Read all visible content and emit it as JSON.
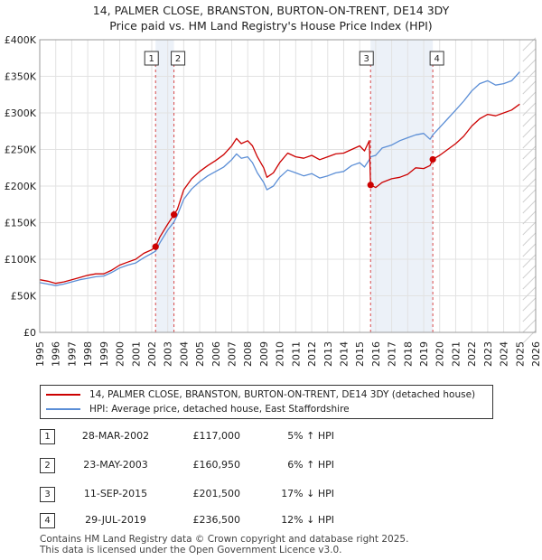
{
  "header": {
    "title_line1": "14, PALMER CLOSE, BRANSTON, BURTON-ON-TRENT, DE14 3DY",
    "title_line2": "Price paid vs. HM Land Registry's House Price Index (HPI)"
  },
  "colors": {
    "property": "#cc0000",
    "hpi": "#5b8ed6",
    "marker_line": "#cc0000",
    "band": "#dde6f3"
  },
  "chart_data": {
    "type": "line",
    "title": "Price paid vs. HM Land Registry's House Price Index (HPI)",
    "xlabel": "",
    "ylabel": "",
    "xlim": [
      1995,
      2026
    ],
    "ylim": [
      0,
      400000
    ],
    "y_ticks": [
      0,
      50000,
      100000,
      150000,
      200000,
      250000,
      300000,
      350000,
      400000
    ],
    "y_tick_labels": [
      "£0",
      "£50K",
      "£100K",
      "£150K",
      "£200K",
      "£250K",
      "£300K",
      "£350K",
      "£400K"
    ],
    "x_ticks": [
      1995,
      1996,
      1997,
      1998,
      1999,
      2000,
      2001,
      2002,
      2003,
      2004,
      2005,
      2006,
      2007,
      2008,
      2009,
      2010,
      2011,
      2012,
      2013,
      2014,
      2015,
      2016,
      2017,
      2018,
      2019,
      2020,
      2021,
      2022,
      2023,
      2024,
      2025,
      2026
    ],
    "x_tick_labels": [
      "1995",
      "1996",
      "1997",
      "1998",
      "1999",
      "2000",
      "2001",
      "2002",
      "2003",
      "2004",
      "2005",
      "2006",
      "2007",
      "2008",
      "2009",
      "2010",
      "2011",
      "2012",
      "2013",
      "2014",
      "2015",
      "2016",
      "2017",
      "2018",
      "2019",
      "2020",
      "2021",
      "2022",
      "2023",
      "2024",
      "2025",
      "2026"
    ],
    "grid": true,
    "hatch_after": 2025.2,
    "series": [
      {
        "name": "14, PALMER CLOSE, BRANSTON, BURTON-ON-TRENT, DE14 3DY (detached house)",
        "color": "#cc0000",
        "points": [
          [
            1995.0,
            72000
          ],
          [
            1995.5,
            70000
          ],
          [
            1996.0,
            67000
          ],
          [
            1996.5,
            69000
          ],
          [
            1997.0,
            72000
          ],
          [
            1997.5,
            75000
          ],
          [
            1998.0,
            78000
          ],
          [
            1998.5,
            80000
          ],
          [
            1999.0,
            80000
          ],
          [
            1999.5,
            85000
          ],
          [
            2000.0,
            92000
          ],
          [
            2000.5,
            96000
          ],
          [
            2001.0,
            100000
          ],
          [
            2001.5,
            108000
          ],
          [
            2002.0,
            113000
          ],
          [
            2002.24,
            117000
          ],
          [
            2002.5,
            130000
          ],
          [
            2003.0,
            148000
          ],
          [
            2003.39,
            160950
          ],
          [
            2003.6,
            168000
          ],
          [
            2004.0,
            195000
          ],
          [
            2004.5,
            210000
          ],
          [
            2005.0,
            220000
          ],
          [
            2005.5,
            228000
          ],
          [
            2006.0,
            235000
          ],
          [
            2006.5,
            243000
          ],
          [
            2007.0,
            255000
          ],
          [
            2007.3,
            265000
          ],
          [
            2007.6,
            258000
          ],
          [
            2008.0,
            262000
          ],
          [
            2008.3,
            255000
          ],
          [
            2008.6,
            240000
          ],
          [
            2009.0,
            225000
          ],
          [
            2009.2,
            212000
          ],
          [
            2009.6,
            218000
          ],
          [
            2010.0,
            232000
          ],
          [
            2010.5,
            245000
          ],
          [
            2011.0,
            240000
          ],
          [
            2011.5,
            238000
          ],
          [
            2012.0,
            242000
          ],
          [
            2012.5,
            236000
          ],
          [
            2013.0,
            240000
          ],
          [
            2013.5,
            244000
          ],
          [
            2014.0,
            245000
          ],
          [
            2014.5,
            250000
          ],
          [
            2015.0,
            255000
          ],
          [
            2015.3,
            248000
          ],
          [
            2015.6,
            262000
          ],
          [
            2015.68,
            201500
          ],
          [
            2016.0,
            198000
          ],
          [
            2016.4,
            205000
          ],
          [
            2017.0,
            210000
          ],
          [
            2017.5,
            212000
          ],
          [
            2018.0,
            216000
          ],
          [
            2018.5,
            225000
          ],
          [
            2019.0,
            224000
          ],
          [
            2019.4,
            228000
          ],
          [
            2019.57,
            236500
          ],
          [
            2020.0,
            242000
          ],
          [
            2020.5,
            250000
          ],
          [
            2021.0,
            258000
          ],
          [
            2021.5,
            268000
          ],
          [
            2022.0,
            282000
          ],
          [
            2022.5,
            292000
          ],
          [
            2023.0,
            298000
          ],
          [
            2023.5,
            296000
          ],
          [
            2024.0,
            300000
          ],
          [
            2024.5,
            304000
          ],
          [
            2025.0,
            312000
          ]
        ]
      },
      {
        "name": "HPI: Average price, detached house, East Staffordshire",
        "color": "#5b8ed6",
        "points": [
          [
            1995.0,
            68000
          ],
          [
            1995.5,
            66000
          ],
          [
            1996.0,
            64000
          ],
          [
            1996.5,
            66000
          ],
          [
            1997.0,
            69000
          ],
          [
            1997.5,
            72000
          ],
          [
            1998.0,
            74000
          ],
          [
            1998.5,
            76000
          ],
          [
            1999.0,
            77000
          ],
          [
            1999.5,
            82000
          ],
          [
            2000.0,
            88000
          ],
          [
            2000.5,
            92000
          ],
          [
            2001.0,
            95000
          ],
          [
            2001.5,
            102000
          ],
          [
            2002.0,
            108000
          ],
          [
            2002.24,
            111000
          ],
          [
            2002.5,
            122000
          ],
          [
            2003.0,
            140000
          ],
          [
            2003.39,
            151000
          ],
          [
            2003.6,
            160000
          ],
          [
            2004.0,
            182000
          ],
          [
            2004.5,
            196000
          ],
          [
            2005.0,
            206000
          ],
          [
            2005.5,
            214000
          ],
          [
            2006.0,
            220000
          ],
          [
            2006.5,
            226000
          ],
          [
            2007.0,
            236000
          ],
          [
            2007.3,
            244000
          ],
          [
            2007.6,
            238000
          ],
          [
            2008.0,
            240000
          ],
          [
            2008.3,
            232000
          ],
          [
            2008.6,
            218000
          ],
          [
            2009.0,
            205000
          ],
          [
            2009.2,
            195000
          ],
          [
            2009.6,
            200000
          ],
          [
            2010.0,
            212000
          ],
          [
            2010.5,
            222000
          ],
          [
            2011.0,
            218000
          ],
          [
            2011.5,
            214000
          ],
          [
            2012.0,
            217000
          ],
          [
            2012.5,
            211000
          ],
          [
            2013.0,
            214000
          ],
          [
            2013.5,
            218000
          ],
          [
            2014.0,
            220000
          ],
          [
            2014.5,
            228000
          ],
          [
            2015.0,
            232000
          ],
          [
            2015.3,
            226000
          ],
          [
            2015.6,
            236000
          ],
          [
            2015.68,
            240000
          ],
          [
            2016.0,
            242000
          ],
          [
            2016.4,
            252000
          ],
          [
            2017.0,
            256000
          ],
          [
            2017.5,
            262000
          ],
          [
            2018.0,
            266000
          ],
          [
            2018.5,
            270000
          ],
          [
            2019.0,
            272000
          ],
          [
            2019.4,
            264000
          ],
          [
            2019.57,
            270000
          ],
          [
            2020.0,
            280000
          ],
          [
            2020.5,
            292000
          ],
          [
            2021.0,
            304000
          ],
          [
            2021.5,
            316000
          ],
          [
            2022.0,
            330000
          ],
          [
            2022.5,
            340000
          ],
          [
            2023.0,
            344000
          ],
          [
            2023.5,
            338000
          ],
          [
            2024.0,
            340000
          ],
          [
            2024.5,
            344000
          ],
          [
            2025.0,
            356000
          ]
        ]
      }
    ],
    "transactions": [
      {
        "label": "1",
        "year": 2002.24,
        "price": 117000,
        "date": "28-MAR-2002",
        "price_text": "£117,000",
        "hpi_text": "5% ↑ HPI"
      },
      {
        "label": "2",
        "year": 2003.39,
        "price": 160950,
        "date": "23-MAY-2003",
        "price_text": "£160,950",
        "hpi_text": "6% ↑ HPI"
      },
      {
        "label": "3",
        "year": 2015.68,
        "price": 201500,
        "date": "11-SEP-2015",
        "price_text": "£201,500",
        "hpi_text": "17% ↓ HPI"
      },
      {
        "label": "4",
        "year": 2019.57,
        "price": 236500,
        "date": "29-JUL-2019",
        "price_text": "£236,500",
        "hpi_text": "12% ↓ HPI"
      }
    ],
    "shaded_ranges": [
      [
        2002.24,
        2003.39
      ],
      [
        2015.68,
        2019.57
      ]
    ]
  },
  "legend": {
    "property_label": "14, PALMER CLOSE, BRANSTON, BURTON-ON-TRENT, DE14 3DY (detached house)",
    "hpi_label": "HPI: Average price, detached house, East Staffordshire"
  },
  "footer": {
    "line1": "Contains HM Land Registry data © Crown copyright and database right 2025.",
    "line2": "This data is licensed under the Open Government Licence v3.0."
  }
}
